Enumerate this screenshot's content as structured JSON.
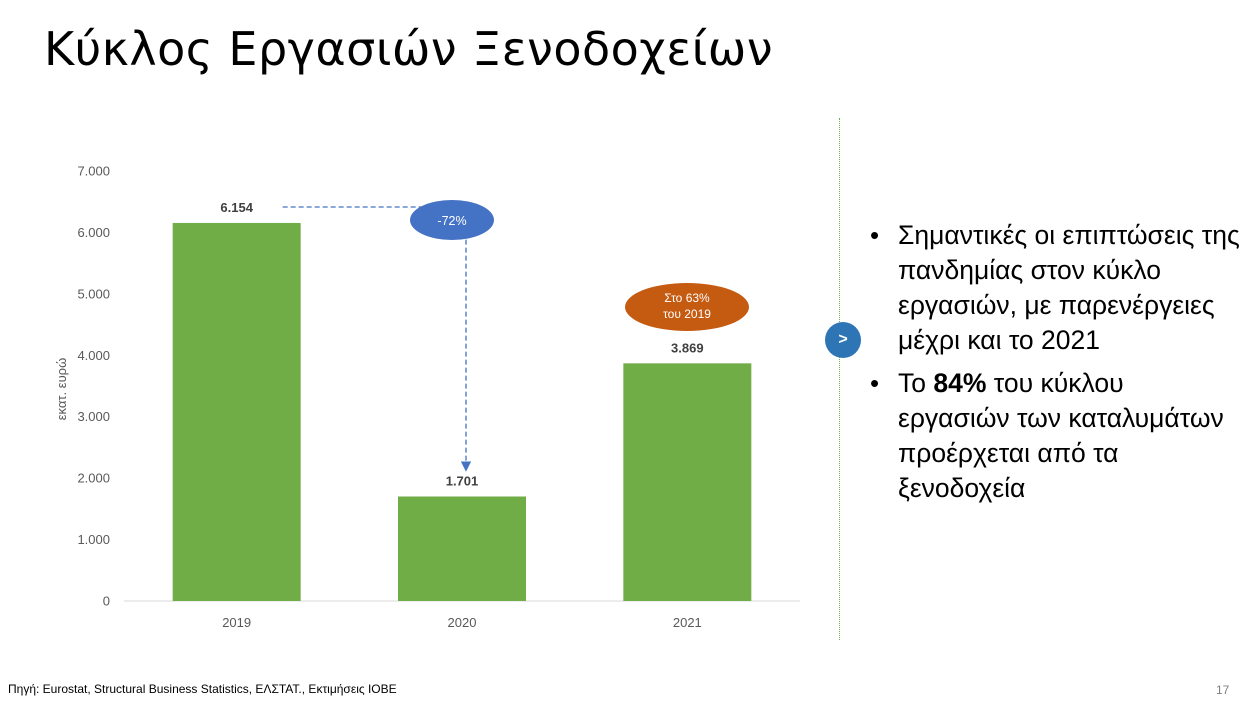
{
  "title": "Κύκλος Εργασιών Ξενοδοχείων",
  "chart_data": {
    "type": "bar",
    "categories": [
      "2019",
      "2020",
      "2021"
    ],
    "values": [
      6154,
      1701,
      3869
    ],
    "value_labels": [
      "6.154",
      "1.701",
      "3.869"
    ],
    "ylabel": "εκατ. ευρώ",
    "ylim": [
      0,
      7000
    ],
    "yticks": [
      0,
      1000,
      2000,
      3000,
      4000,
      5000,
      6000,
      7000
    ],
    "ytick_labels": [
      "0",
      "1.000",
      "2.000",
      "3.000",
      "4.000",
      "5.000",
      "6.000",
      "7.000"
    ],
    "grid": false,
    "bar_color": "#70ad47",
    "annotations": [
      {
        "text": "-72%",
        "color": "#4472c4"
      },
      {
        "text_lines": [
          "Στο 63%",
          "του 2019"
        ],
        "color": "#c55a11"
      }
    ]
  },
  "side": {
    "arrow_symbol": ">",
    "arrow_color": "#2e75b6",
    "bullets": [
      {
        "text": "Σημαντικές οι επιπτώσεις της πανδημίας στον κύκλο εργασιών, με παρενέργειες μέχρι και το 2021"
      },
      {
        "pre": "Το ",
        "bold": "84%",
        "post": " του κύκλου εργασιών των καταλυμάτων προέρχεται από τα ξενοδοχεία"
      }
    ]
  },
  "footer": {
    "source": "Πηγή: Eurostat, Structural Business Statistics, ΕΛΣΤΑΤ., Εκτιμήσεις ΙΟΒΕ",
    "page_number": "17"
  }
}
